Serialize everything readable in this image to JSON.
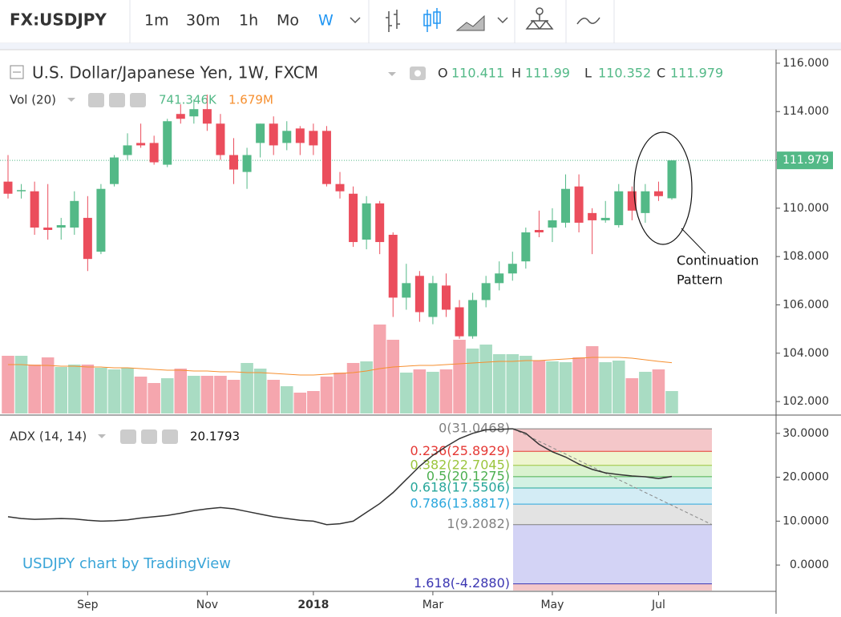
{
  "toolbar": {
    "symbol": "FX:USDJPY",
    "intervals": [
      "1m",
      "30m",
      "1h",
      "Mo",
      "W"
    ],
    "active_interval": 4
  },
  "watermark": "USDJPY chart by TradingView",
  "chart_data": [
    {
      "type": "candlestick",
      "title": "U.S. Dollar/Japanese Yen, 1W, FXCM",
      "ohlc_names": [
        "O",
        "H",
        "L",
        "C"
      ],
      "categories": [
        null,
        null,
        null,
        null,
        null,
        null,
        "Sep",
        null,
        null,
        null,
        null,
        null,
        null,
        null,
        null,
        "Nov",
        null,
        null,
        null,
        null,
        null,
        null,
        null,
        "2018",
        null,
        null,
        null,
        null,
        null,
        null,
        null,
        null,
        "Mar",
        null,
        null,
        null,
        null,
        null,
        null,
        null,
        null,
        "May",
        null,
        null,
        null,
        null,
        null,
        null,
        null,
        "Jul",
        null
      ],
      "open": [
        111.1,
        110.7,
        110.7,
        109.2,
        109.2,
        109.2,
        109.6,
        108.2,
        111.0,
        112.2,
        112.7,
        112.7,
        111.8,
        113.9,
        113.8,
        114.1,
        113.5,
        112.2,
        111.5,
        112.7,
        113.5,
        112.7,
        113.3,
        113.2,
        113.2,
        111.0,
        110.6,
        108.7,
        110.2,
        108.9,
        106.3,
        107.2,
        105.5,
        106.8,
        105.9,
        104.7,
        106.2,
        106.9,
        107.3,
        107.8,
        109.1,
        109.2,
        109.4,
        110.9,
        109.8,
        109.5,
        109.3,
        110.7,
        109.8,
        110.7,
        110.411
      ],
      "high": [
        112.2,
        111.0,
        111.1,
        111.0,
        109.6,
        110.7,
        110.5,
        111.0,
        112.2,
        113.1,
        113.5,
        113.0,
        113.7,
        114.3,
        114.5,
        114.7,
        113.9,
        112.9,
        112.5,
        113.5,
        113.8,
        113.6,
        113.4,
        113.5,
        113.4,
        111.5,
        110.9,
        110.5,
        110.3,
        109.0,
        107.7,
        107.4,
        107.2,
        107.3,
        106.2,
        106.5,
        107.2,
        107.8,
        108.2,
        109.2,
        109.9,
        110.0,
        111.4,
        111.4,
        110.0,
        110.3,
        111.0,
        110.9,
        111.0,
        111.1,
        111.99
      ],
      "low": [
        110.4,
        110.4,
        108.9,
        108.7,
        108.7,
        108.9,
        107.4,
        108.1,
        110.9,
        112.0,
        112.5,
        111.8,
        111.7,
        113.5,
        113.5,
        113.2,
        112.0,
        111.0,
        110.8,
        112.1,
        112.2,
        112.4,
        112.2,
        112.2,
        110.9,
        110.4,
        108.4,
        108.3,
        108.1,
        105.5,
        105.8,
        105.3,
        105.2,
        105.5,
        104.6,
        104.6,
        105.9,
        106.6,
        107.0,
        107.5,
        108.8,
        108.6,
        109.2,
        109.0,
        108.1,
        109.4,
        109.2,
        109.5,
        109.4,
        110.3,
        110.352
      ],
      "close": [
        110.6,
        110.75,
        109.2,
        109.1,
        109.3,
        110.3,
        107.9,
        110.8,
        112.1,
        112.6,
        112.6,
        111.9,
        113.6,
        113.7,
        114.1,
        113.5,
        112.2,
        111.6,
        112.2,
        113.5,
        112.6,
        113.2,
        112.7,
        112.6,
        111.0,
        110.7,
        108.6,
        110.2,
        108.6,
        106.3,
        106.9,
        105.7,
        106.9,
        105.8,
        104.7,
        106.2,
        106.9,
        107.3,
        107.7,
        109.0,
        109.0,
        109.5,
        110.8,
        109.4,
        109.5,
        109.6,
        110.7,
        109.9,
        110.7,
        110.5,
        111.979
      ],
      "up_color": "#53b987",
      "down_color": "#eb4d5c",
      "ylim": [
        101.44,
        116.56
      ],
      "yticks": [
        {
          "value": 102,
          "label": "102.000"
        },
        {
          "value": 104,
          "label": "104.000"
        },
        {
          "value": 106,
          "label": "106.000"
        },
        {
          "value": 108,
          "label": "108.000"
        },
        {
          "value": 110,
          "label": "110.000"
        },
        {
          "value": 112,
          "label": "112.000"
        },
        {
          "value": 114,
          "label": "114.000"
        },
        {
          "value": 116,
          "label": "116.000"
        }
      ],
      "last_price_line": true,
      "annotation": [
        "Continuation",
        "Pattern"
      ]
    },
    {
      "type": "bar",
      "name": "Vol (20)",
      "values": [
        1908,
        1908,
        1617,
        1855,
        1537,
        1617,
        1617,
        1511,
        1458,
        1511,
        1219,
        1007,
        1166,
        1484,
        1246,
        1246,
        1246,
        1113,
        1670,
        1484,
        1113,
        901,
        689,
        742,
        1219,
        1352,
        1670,
        1723,
        2942,
        2438,
        1352,
        1458,
        1378,
        1458,
        2438,
        2147,
        2279,
        1961,
        1961,
        1908,
        1749,
        1723,
        1696,
        1855,
        2226,
        1696,
        1749,
        1166,
        1378,
        1458,
        741.346
      ],
      "value_label": "741.346K",
      "value_color": "#53b987",
      "up_color": "#a9dcc3",
      "down_color": "#f5a6ae",
      "ma": [
        1617,
        1617,
        1590,
        1590,
        1564,
        1564,
        1537,
        1537,
        1511,
        1511,
        1484,
        1458,
        1431,
        1431,
        1405,
        1405,
        1378,
        1378,
        1352,
        1352,
        1325,
        1299,
        1272,
        1272,
        1299,
        1325,
        1352,
        1405,
        1484,
        1537,
        1564,
        1590,
        1590,
        1617,
        1643,
        1670,
        1696,
        1723,
        1723,
        1749,
        1749,
        1776,
        1802,
        1829,
        1855,
        1855,
        1855,
        1829,
        1776,
        1723,
        1679
      ],
      "ma_label": "1.679M",
      "ma_color": "#f68f2f"
    },
    {
      "type": "line",
      "name": "ADX (14, 14)",
      "color": "#333333",
      "values": [
        11.0,
        10.6,
        10.4,
        10.5,
        10.6,
        10.5,
        10.2,
        10.0,
        10.1,
        10.3,
        10.7,
        11.0,
        11.3,
        11.8,
        12.4,
        12.8,
        13.1,
        12.8,
        12.2,
        11.6,
        11.0,
        10.6,
        10.2,
        10.0,
        9.2,
        9.4,
        10.0,
        12.0,
        14.0,
        16.5,
        19.5,
        22.5,
        25.0,
        27.0,
        28.8,
        30.0,
        30.8,
        30.9,
        31.0468,
        30.0,
        27.5,
        25.8,
        24.6,
        23.0,
        21.8,
        21.0,
        20.6,
        20.3,
        20.1,
        19.7,
        20.1793
      ],
      "ylim": [
        -6.0,
        33.8
      ],
      "yticks": [
        {
          "value": 0,
          "label": "0.0000"
        },
        {
          "value": 10,
          "label": "10.0000"
        },
        {
          "value": 20,
          "label": "20.0000"
        },
        {
          "value": 30,
          "label": "30.0000"
        }
      ],
      "fib_levels": [
        {
          "value": 31.0468,
          "label": "0(31.0468)",
          "color": "#808080",
          "fill": "#f4c7c9"
        },
        {
          "value": 25.8929,
          "label": "0.236(25.8929)",
          "color": "#e53935",
          "fill": "#eef5cf"
        },
        {
          "value": 22.7045,
          "label": "0.382(22.7045)",
          "color": "#9bc53d",
          "fill": "#d9f2cf"
        },
        {
          "value": 20.1275,
          "label": "0.5(20.1275)",
          "color": "#4caf50",
          "fill": "#d3f1e3"
        },
        {
          "value": 17.5506,
          "label": "0.618(17.5506)",
          "color": "#26a69a",
          "fill": "#d3ecf5"
        },
        {
          "value": 13.8817,
          "label": "0.786(13.8817)",
          "color": "#2aa7dd",
          "fill": "#e3e3e3"
        },
        {
          "value": 9.2082,
          "label": "1(9.2082)",
          "color": "#808080",
          "fill": "#d3d3f5"
        },
        {
          "value": -4.288,
          "label": "1.618(-4.2880)",
          "color": "#3b36b2",
          "fill": "#f4c7c9"
        }
      ]
    }
  ]
}
